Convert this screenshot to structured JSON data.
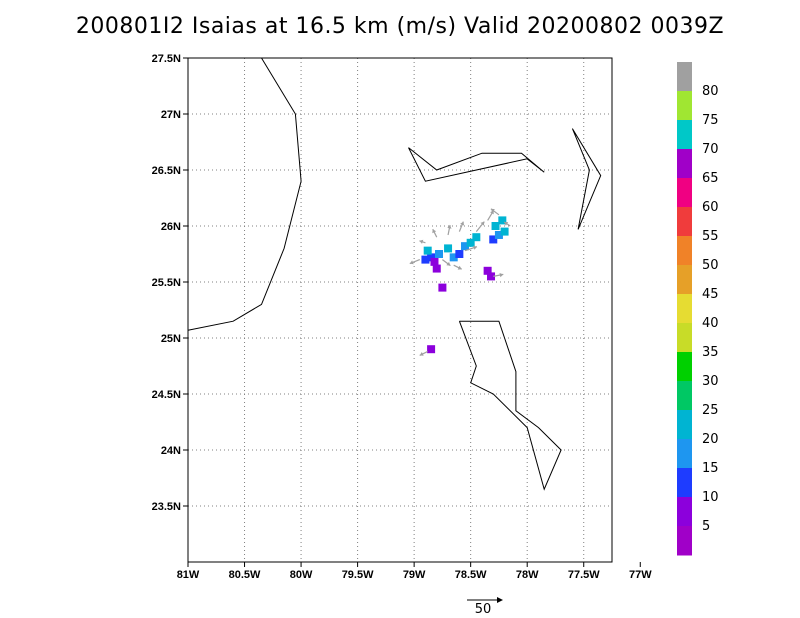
{
  "title": "200801I2 Isaias at 16.5 km (m/s) Valid 20200802 0039Z",
  "x_tick_labels": [
    {
      "label": "81W",
      "lon": -81.0
    },
    {
      "label": "80.5W",
      "lon": -80.5
    },
    {
      "label": "80W",
      "lon": -80.0
    },
    {
      "label": "79.5W",
      "lon": -79.5
    },
    {
      "label": "79W",
      "lon": -79.0
    },
    {
      "label": "78.5W",
      "lon": -78.5
    },
    {
      "label": "78W",
      "lon": -78.0
    },
    {
      "label": "77.5W",
      "lon": -77.5
    },
    {
      "label": "77W",
      "lon": -77.0
    }
  ],
  "y_tick_labels": [
    {
      "label": "27.5N",
      "lat": 27.5
    },
    {
      "label": "27N",
      "lat": 27.0
    },
    {
      "label": "26.5N",
      "lat": 26.5
    },
    {
      "label": "26N",
      "lat": 26.0
    },
    {
      "label": "25.5N",
      "lat": 25.5
    },
    {
      "label": "25N",
      "lat": 25.0
    },
    {
      "label": "24.5N",
      "lat": 24.5
    },
    {
      "label": "24N",
      "lat": 24.0
    },
    {
      "label": "23.5N",
      "lat": 23.5
    }
  ],
  "map_extent": {
    "lon_min": -81.0,
    "lon_max": -77.25,
    "lat_min": 23.0,
    "lat_max": 27.5
  },
  "coastlines": [
    [
      [
        -80.35,
        27.5
      ],
      [
        -80.05,
        27.0
      ],
      [
        -80.0,
        26.4
      ],
      [
        -80.15,
        25.8
      ],
      [
        -80.35,
        25.3
      ],
      [
        -80.6,
        25.15
      ],
      [
        -81.0,
        25.07
      ]
    ],
    [
      [
        -79.05,
        26.7
      ],
      [
        -78.8,
        26.5
      ],
      [
        -78.4,
        26.65
      ],
      [
        -78.05,
        26.65
      ],
      [
        -77.85,
        26.48
      ],
      [
        -78.0,
        26.6
      ],
      [
        -78.9,
        26.4
      ],
      [
        -79.05,
        26.7
      ]
    ],
    [
      [
        -77.6,
        26.87
      ],
      [
        -77.35,
        26.45
      ],
      [
        -77.55,
        25.97
      ],
      [
        -77.45,
        26.5
      ],
      [
        -77.6,
        26.87
      ]
    ],
    [
      [
        -78.6,
        25.15
      ],
      [
        -78.25,
        25.15
      ],
      [
        -78.1,
        24.7
      ],
      [
        -78.1,
        24.35
      ],
      [
        -77.9,
        24.2
      ],
      [
        -77.7,
        24.0
      ],
      [
        -77.85,
        23.65
      ],
      [
        -78.0,
        24.2
      ],
      [
        -78.3,
        24.5
      ],
      [
        -78.5,
        24.6
      ],
      [
        -78.45,
        24.75
      ],
      [
        -78.6,
        25.15
      ]
    ]
  ],
  "colorbar": {
    "labels": [
      "80",
      "75",
      "70",
      "65",
      "60",
      "55",
      "50",
      "45",
      "40",
      "35",
      "30",
      "25",
      "20",
      "15",
      "10",
      "5"
    ],
    "colors": [
      "#a0a0a0",
      "#a0e632",
      "#00c8c8",
      "#a000c8",
      "#f00082",
      "#f03c3c",
      "#f08228",
      "#e6a028",
      "#e6dc32",
      "#c8dc28",
      "#00d000",
      "#00c864",
      "#00b4d2",
      "#1e96f0",
      "#1e3cff",
      "#8c00dc",
      "#a000c8"
    ]
  },
  "wind_cells": [
    {
      "lon": -78.85,
      "lat": 25.72,
      "v": 12
    },
    {
      "lon": -78.82,
      "lat": 25.68,
      "v": 8
    },
    {
      "lon": -78.78,
      "lat": 25.75,
      "v": 18
    },
    {
      "lon": -78.8,
      "lat": 25.62,
      "v": 5
    },
    {
      "lon": -78.88,
      "lat": 25.78,
      "v": 20
    },
    {
      "lon": -78.9,
      "lat": 25.7,
      "v": 14
    },
    {
      "lon": -78.7,
      "lat": 25.8,
      "v": 22
    },
    {
      "lon": -78.65,
      "lat": 25.72,
      "v": 16
    },
    {
      "lon": -78.6,
      "lat": 25.75,
      "v": 12
    },
    {
      "lon": -78.55,
      "lat": 25.82,
      "v": 18
    },
    {
      "lon": -78.5,
      "lat": 25.85,
      "v": 21
    },
    {
      "lon": -78.45,
      "lat": 25.9,
      "v": 20
    },
    {
      "lon": -78.3,
      "lat": 25.88,
      "v": 12
    },
    {
      "lon": -78.25,
      "lat": 25.92,
      "v": 18
    },
    {
      "lon": -78.2,
      "lat": 25.95,
      "v": 22
    },
    {
      "lon": -78.28,
      "lat": 26.0,
      "v": 20
    },
    {
      "lon": -78.22,
      "lat": 26.05,
      "v": 24
    },
    {
      "lon": -78.35,
      "lat": 25.6,
      "v": 6
    },
    {
      "lon": -78.32,
      "lat": 25.55,
      "v": 5
    },
    {
      "lon": -78.85,
      "lat": 24.9,
      "v": 8
    },
    {
      "lon": -78.75,
      "lat": 25.45,
      "v": 6
    }
  ],
  "wind_vectors": [
    {
      "lon": -78.95,
      "lat": 25.7,
      "u": -25,
      "v": -10
    },
    {
      "lon": -78.9,
      "lat": 25.85,
      "u": -15,
      "v": 5
    },
    {
      "lon": -78.8,
      "lat": 25.9,
      "u": -10,
      "v": 20
    },
    {
      "lon": -78.7,
      "lat": 25.92,
      "u": 5,
      "v": 25
    },
    {
      "lon": -78.6,
      "lat": 25.95,
      "u": 10,
      "v": 25
    },
    {
      "lon": -78.55,
      "lat": 25.78,
      "u": 30,
      "v": 10
    },
    {
      "lon": -78.45,
      "lat": 25.95,
      "u": 20,
      "v": 25
    },
    {
      "lon": -78.35,
      "lat": 26.05,
      "u": 15,
      "v": 25
    },
    {
      "lon": -78.25,
      "lat": 26.1,
      "u": -20,
      "v": 15
    },
    {
      "lon": -78.15,
      "lat": 26.0,
      "u": -15,
      "v": 10
    },
    {
      "lon": -78.3,
      "lat": 25.55,
      "u": 25,
      "v": 5
    },
    {
      "lon": -78.88,
      "lat": 24.88,
      "u": -20,
      "v": -10
    },
    {
      "lon": -78.75,
      "lat": 25.7,
      "u": 20,
      "v": -15
    },
    {
      "lon": -78.65,
      "lat": 25.65,
      "u": 20,
      "v": -10
    }
  ],
  "reference_vector": {
    "label": "50",
    "value": 50
  },
  "colors": {
    "frame": "#000000",
    "grid": "#808080",
    "coast": "#000000",
    "vector": "#a0a0a0"
  }
}
